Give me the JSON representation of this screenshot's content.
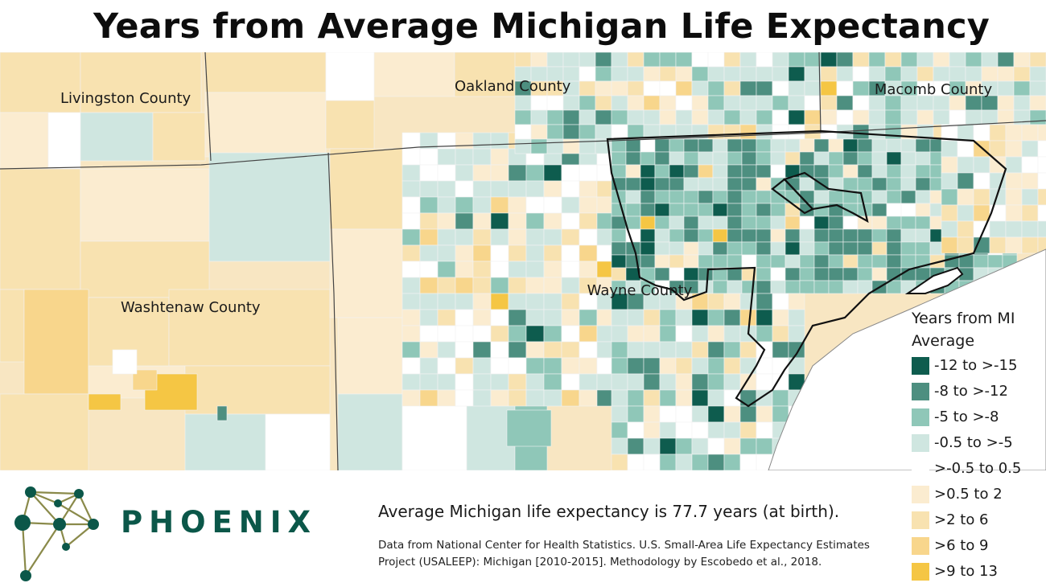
{
  "title": "Years from Average Michigan Life Expectancy",
  "counties": {
    "livingston": "Livingston County",
    "oakland": "Oakland County",
    "macomb": "Macomb County",
    "washtenaw": "Washtenaw County",
    "wayne": "Wayne County"
  },
  "legend": {
    "title": "Years from MI Average",
    "items": [
      {
        "label": "-12 to >-15",
        "color": "#0e5c4e"
      },
      {
        "label": "-8 to >-12",
        "color": "#4d8f80"
      },
      {
        "label": "-5 to >-8",
        "color": "#8fc7b8"
      },
      {
        "label": "-0.5 to >-5",
        "color": "#cfe6e0"
      },
      {
        "label": ">-0.5 to 0.5",
        "color": "#ffffff"
      },
      {
        "label": ">0.5 to 2",
        "color": "#fbecd0"
      },
      {
        "label": ">2 to 6",
        "color": "#f8e2b0"
      },
      {
        "label": ">6 to 9",
        "color": "#f8d68c"
      },
      {
        "label": ">9 to 13",
        "color": "#f5c644"
      }
    ]
  },
  "brand": "PHOENIX",
  "average_note": "Average Michigan life expectancy is 77.7 years (at birth).",
  "source_note": "Data from National Center for Health Statistics. U.S. Small-Area Life Expectancy Estimates Project (USALEEP): Michigan [2010-2015]. Methodology by Escobedo et al., 2018.",
  "colors": {
    "water": "#ffffff",
    "boundary": "#111111",
    "brand": "#0b5749",
    "logo_olive": "#8a8a4a"
  }
}
